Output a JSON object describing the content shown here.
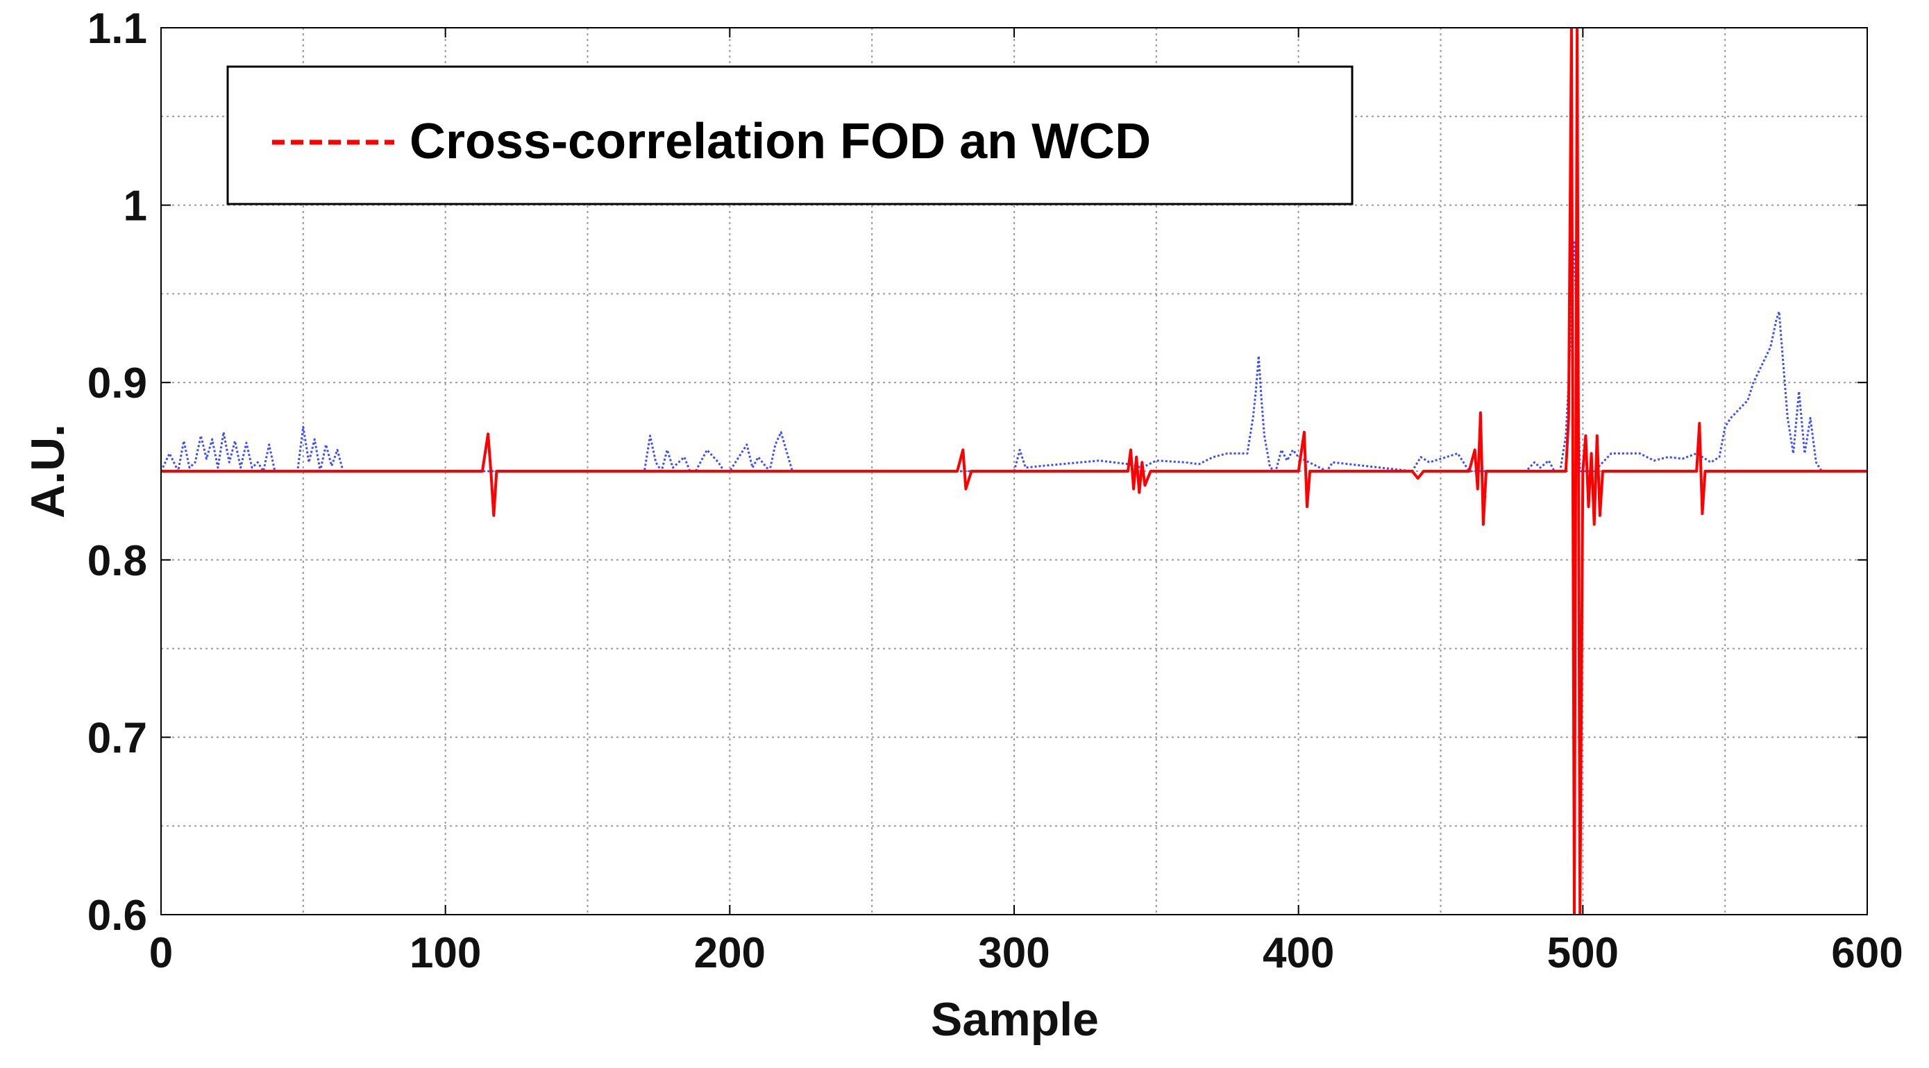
{
  "chart_data": {
    "type": "line",
    "title": "",
    "xlabel": "Sample",
    "ylabel": "A.U.",
    "xlim": [
      0,
      600
    ],
    "ylim": [
      0.6,
      1.1
    ],
    "x_ticks": [
      0,
      100,
      200,
      300,
      400,
      500,
      600
    ],
    "x_tick_labels": [
      "0",
      "100",
      "200",
      "300",
      "400",
      "500",
      "600"
    ],
    "y_ticks": [
      0.6,
      0.7,
      0.8,
      0.9,
      1.0,
      1.1
    ],
    "y_tick_labels": [
      "0.6",
      "0.7",
      "0.8",
      "0.9",
      "1",
      "1.1"
    ],
    "grid": true,
    "legend_position": "top-left",
    "series": [
      {
        "name": "Cross-correlation FOD an WCD",
        "color": "#ff0000",
        "style": "solid",
        "x": [
          0,
          113,
          115,
          116,
          117,
          118,
          120,
          280,
          282,
          283,
          285,
          340,
          341,
          342,
          343,
          344,
          345,
          346,
          348,
          350,
          400,
          402,
          403,
          404,
          406,
          440,
          442,
          444,
          460,
          462,
          463,
          464,
          465,
          466,
          468,
          494,
          495,
          496,
          497,
          498,
          499,
          500,
          501,
          502,
          503,
          504,
          505,
          506,
          507,
          508,
          510,
          540,
          541,
          542,
          543,
          545,
          600
        ],
        "y": [
          0.85,
          0.85,
          0.871,
          0.85,
          0.825,
          0.85,
          0.85,
          0.85,
          0.862,
          0.84,
          0.85,
          0.85,
          0.862,
          0.84,
          0.858,
          0.838,
          0.855,
          0.842,
          0.85,
          0.85,
          0.85,
          0.872,
          0.83,
          0.85,
          0.85,
          0.85,
          0.846,
          0.85,
          0.85,
          0.862,
          0.84,
          0.883,
          0.82,
          0.85,
          0.85,
          0.85,
          0.88,
          1.1,
          0.6,
          1.1,
          0.6,
          0.85,
          0.87,
          0.83,
          0.86,
          0.82,
          0.87,
          0.825,
          0.85,
          0.85,
          0.85,
          0.85,
          0.877,
          0.826,
          0.85,
          0.85,
          0.85
        ]
      },
      {
        "name": "",
        "color": "#3b4dff",
        "style": "dotted",
        "x": [
          0,
          3,
          6,
          8,
          10,
          12,
          14,
          16,
          18,
          20,
          22,
          24,
          26,
          28,
          30,
          32,
          34,
          36,
          38,
          40,
          48,
          50,
          52,
          54,
          56,
          58,
          60,
          62,
          64,
          68,
          170,
          172,
          174,
          176,
          178,
          180,
          184,
          186,
          188,
          192,
          196,
          198,
          200,
          206,
          208,
          210,
          214,
          216,
          218,
          222,
          300,
          302,
          304,
          310,
          330,
          340,
          345,
          350,
          360,
          365,
          370,
          375,
          382,
          383,
          384,
          385,
          386,
          387,
          388,
          390,
          392,
          394,
          396,
          398,
          400,
          410,
          412,
          440,
          443,
          446,
          452,
          456,
          460,
          480,
          483,
          485,
          488,
          490,
          492,
          494,
          495,
          497,
          499,
          500,
          504,
          510,
          520,
          525,
          530,
          535,
          540,
          545,
          548,
          550,
          552,
          555,
          558,
          560,
          563,
          566,
          568,
          569,
          570,
          572,
          574,
          576,
          578,
          580,
          582,
          584,
          600
        ],
        "y": [
          0.85,
          0.86,
          0.85,
          0.867,
          0.852,
          0.855,
          0.87,
          0.857,
          0.868,
          0.852,
          0.872,
          0.855,
          0.867,
          0.852,
          0.866,
          0.852,
          0.855,
          0.85,
          0.865,
          0.85,
          0.85,
          0.875,
          0.855,
          0.868,
          0.85,
          0.865,
          0.853,
          0.862,
          0.85,
          0.85,
          0.85,
          0.87,
          0.855,
          0.85,
          0.862,
          0.852,
          0.858,
          0.85,
          0.85,
          0.862,
          0.855,
          0.85,
          0.85,
          0.865,
          0.852,
          0.858,
          0.85,
          0.865,
          0.872,
          0.85,
          0.85,
          0.862,
          0.852,
          0.853,
          0.856,
          0.854,
          0.852,
          0.856,
          0.855,
          0.854,
          0.858,
          0.86,
          0.86,
          0.87,
          0.88,
          0.895,
          0.915,
          0.89,
          0.87,
          0.852,
          0.85,
          0.862,
          0.856,
          0.862,
          0.858,
          0.85,
          0.855,
          0.85,
          0.858,
          0.855,
          0.858,
          0.86,
          0.85,
          0.85,
          0.855,
          0.852,
          0.856,
          0.85,
          0.85,
          0.87,
          0.9,
          0.98,
          0.85,
          0.85,
          0.85,
          0.86,
          0.86,
          0.856,
          0.858,
          0.857,
          0.86,
          0.855,
          0.858,
          0.875,
          0.88,
          0.885,
          0.89,
          0.9,
          0.91,
          0.92,
          0.935,
          0.94,
          0.92,
          0.88,
          0.86,
          0.895,
          0.86,
          0.88,
          0.855,
          0.85,
          0.85
        ]
      }
    ]
  }
}
